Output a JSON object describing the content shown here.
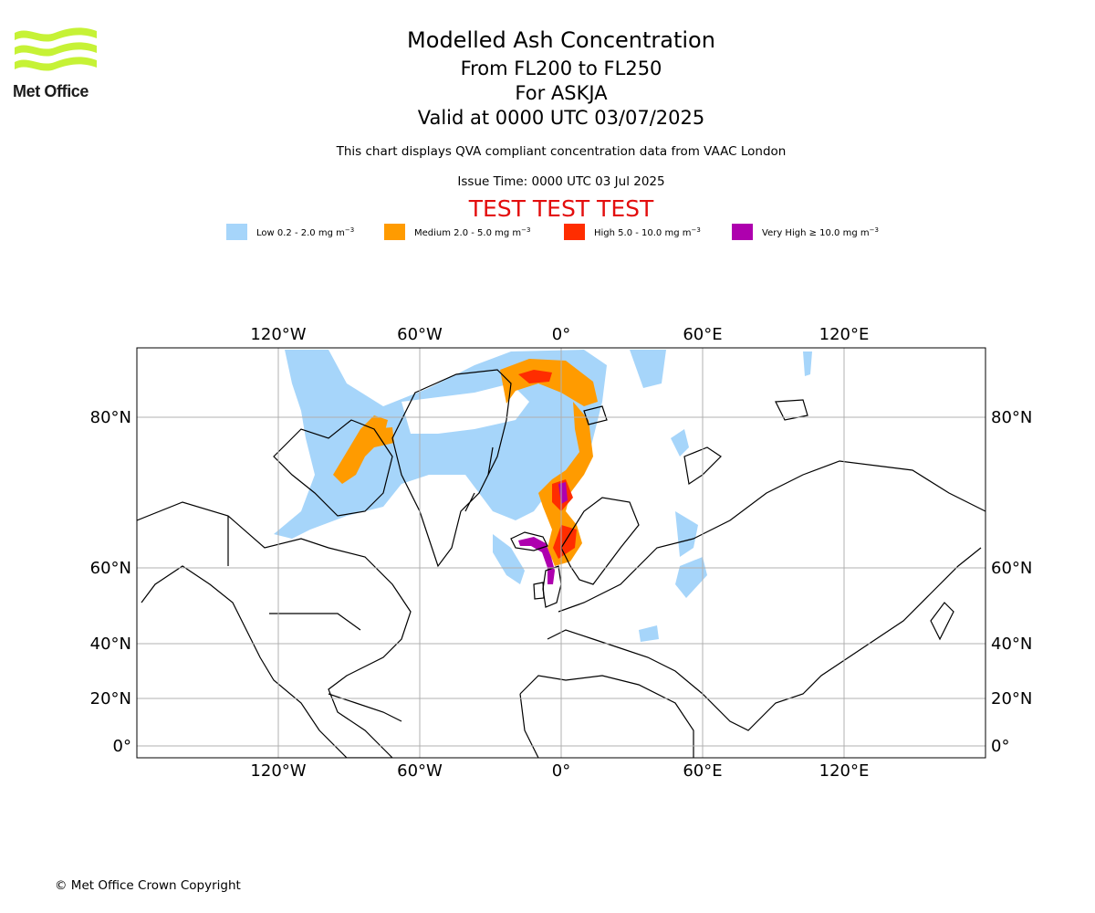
{
  "logo": {
    "text": "Met Office",
    "icon": "met-office-wave-logo",
    "color": "#c6f236"
  },
  "header": {
    "title": "Modelled Ash Concentration",
    "levels": "From FL200 to FL250",
    "volcano": "For ASKJA",
    "valid": "Valid at 0000 UTC 03/07/2025",
    "description": "This chart displays QVA compliant concentration data from VAAC London",
    "issue_time": "Issue Time: 0000 UTC 03 Jul 2025",
    "test_banner": "TEST TEST TEST",
    "test_color": "#e30e0e"
  },
  "legend": [
    {
      "label": "Low 0.2 - 2.0 mg m",
      "sup": "−3",
      "color": "#a6d5fa"
    },
    {
      "label": "Medium 2.0 - 5.0 mg m",
      "sup": "−3",
      "color": "#ff9b00"
    },
    {
      "label": "High 5.0 - 10.0 mg m",
      "sup": "−3",
      "color": "#ff2d00"
    },
    {
      "label": "Very High ≥ 10.0 mg m",
      "sup": "−3",
      "color": "#ae00ae"
    }
  ],
  "map": {
    "lon_ticks": [
      "120°W",
      "60°W",
      "0°",
      "60°E",
      "120°E"
    ],
    "lat_ticks": [
      "80°N",
      "60°N",
      "40°N",
      "20°N",
      "0°"
    ],
    "grid": true,
    "ash_colors": {
      "low": "#a6d5fa",
      "medium": "#ff9b00",
      "high": "#ff2d00",
      "very_high": "#ae00ae"
    }
  },
  "footer": {
    "copyright": "© Met Office Crown Copyright"
  }
}
